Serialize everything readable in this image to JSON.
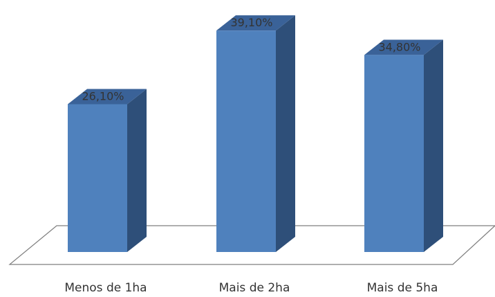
{
  "chart_data": {
    "type": "bar",
    "style": "3d-column",
    "categories": [
      "Menos de 1ha",
      "Mais de 2ha",
      "Mais de 5ha"
    ],
    "values": [
      26.1,
      39.1,
      34.8
    ],
    "value_labels": [
      "26,10%",
      "39,10%",
      "34,80%"
    ],
    "unit": "%",
    "title": "",
    "xlabel": "",
    "ylabel": "",
    "ylim": [
      0,
      40
    ],
    "grid": false,
    "legend": "none",
    "colors": {
      "front": "#4f81bd",
      "side": "#2e4f79",
      "top": "#3a6298",
      "floor": "#ffffff",
      "floor_line": "#7f7f7f"
    }
  }
}
